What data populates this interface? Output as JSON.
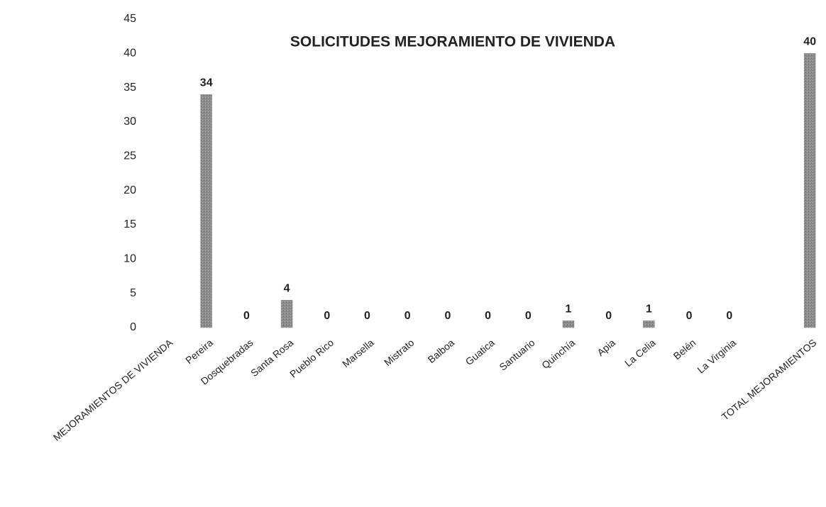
{
  "chart_data": {
    "type": "bar",
    "title": "SOLICITUDES MEJORAMIENTO DE VIVIENDA",
    "categories": [
      "MEJORAMIENTOS DE VIVIENDA",
      "Pereira",
      "Dosquebradas",
      "Santa Rosa",
      "Pueblo Rico",
      "Marsella",
      "Mistrato",
      "Balboa",
      "Guatica",
      "Santuario",
      "Quinchía",
      "Apia",
      "La Celia",
      "Belén",
      "La Virginia",
      null,
      "TOTAL MEJORAMIENTOS"
    ],
    "values": [
      null,
      34,
      0,
      4,
      0,
      0,
      0,
      0,
      0,
      0,
      1,
      0,
      1,
      0,
      0,
      null,
      40
    ],
    "color": "#8c8c8c",
    "ylim": [
      0,
      45
    ],
    "yticks": [
      0,
      5,
      10,
      15,
      20,
      25,
      30,
      35,
      40,
      45
    ],
    "grid": false
  }
}
